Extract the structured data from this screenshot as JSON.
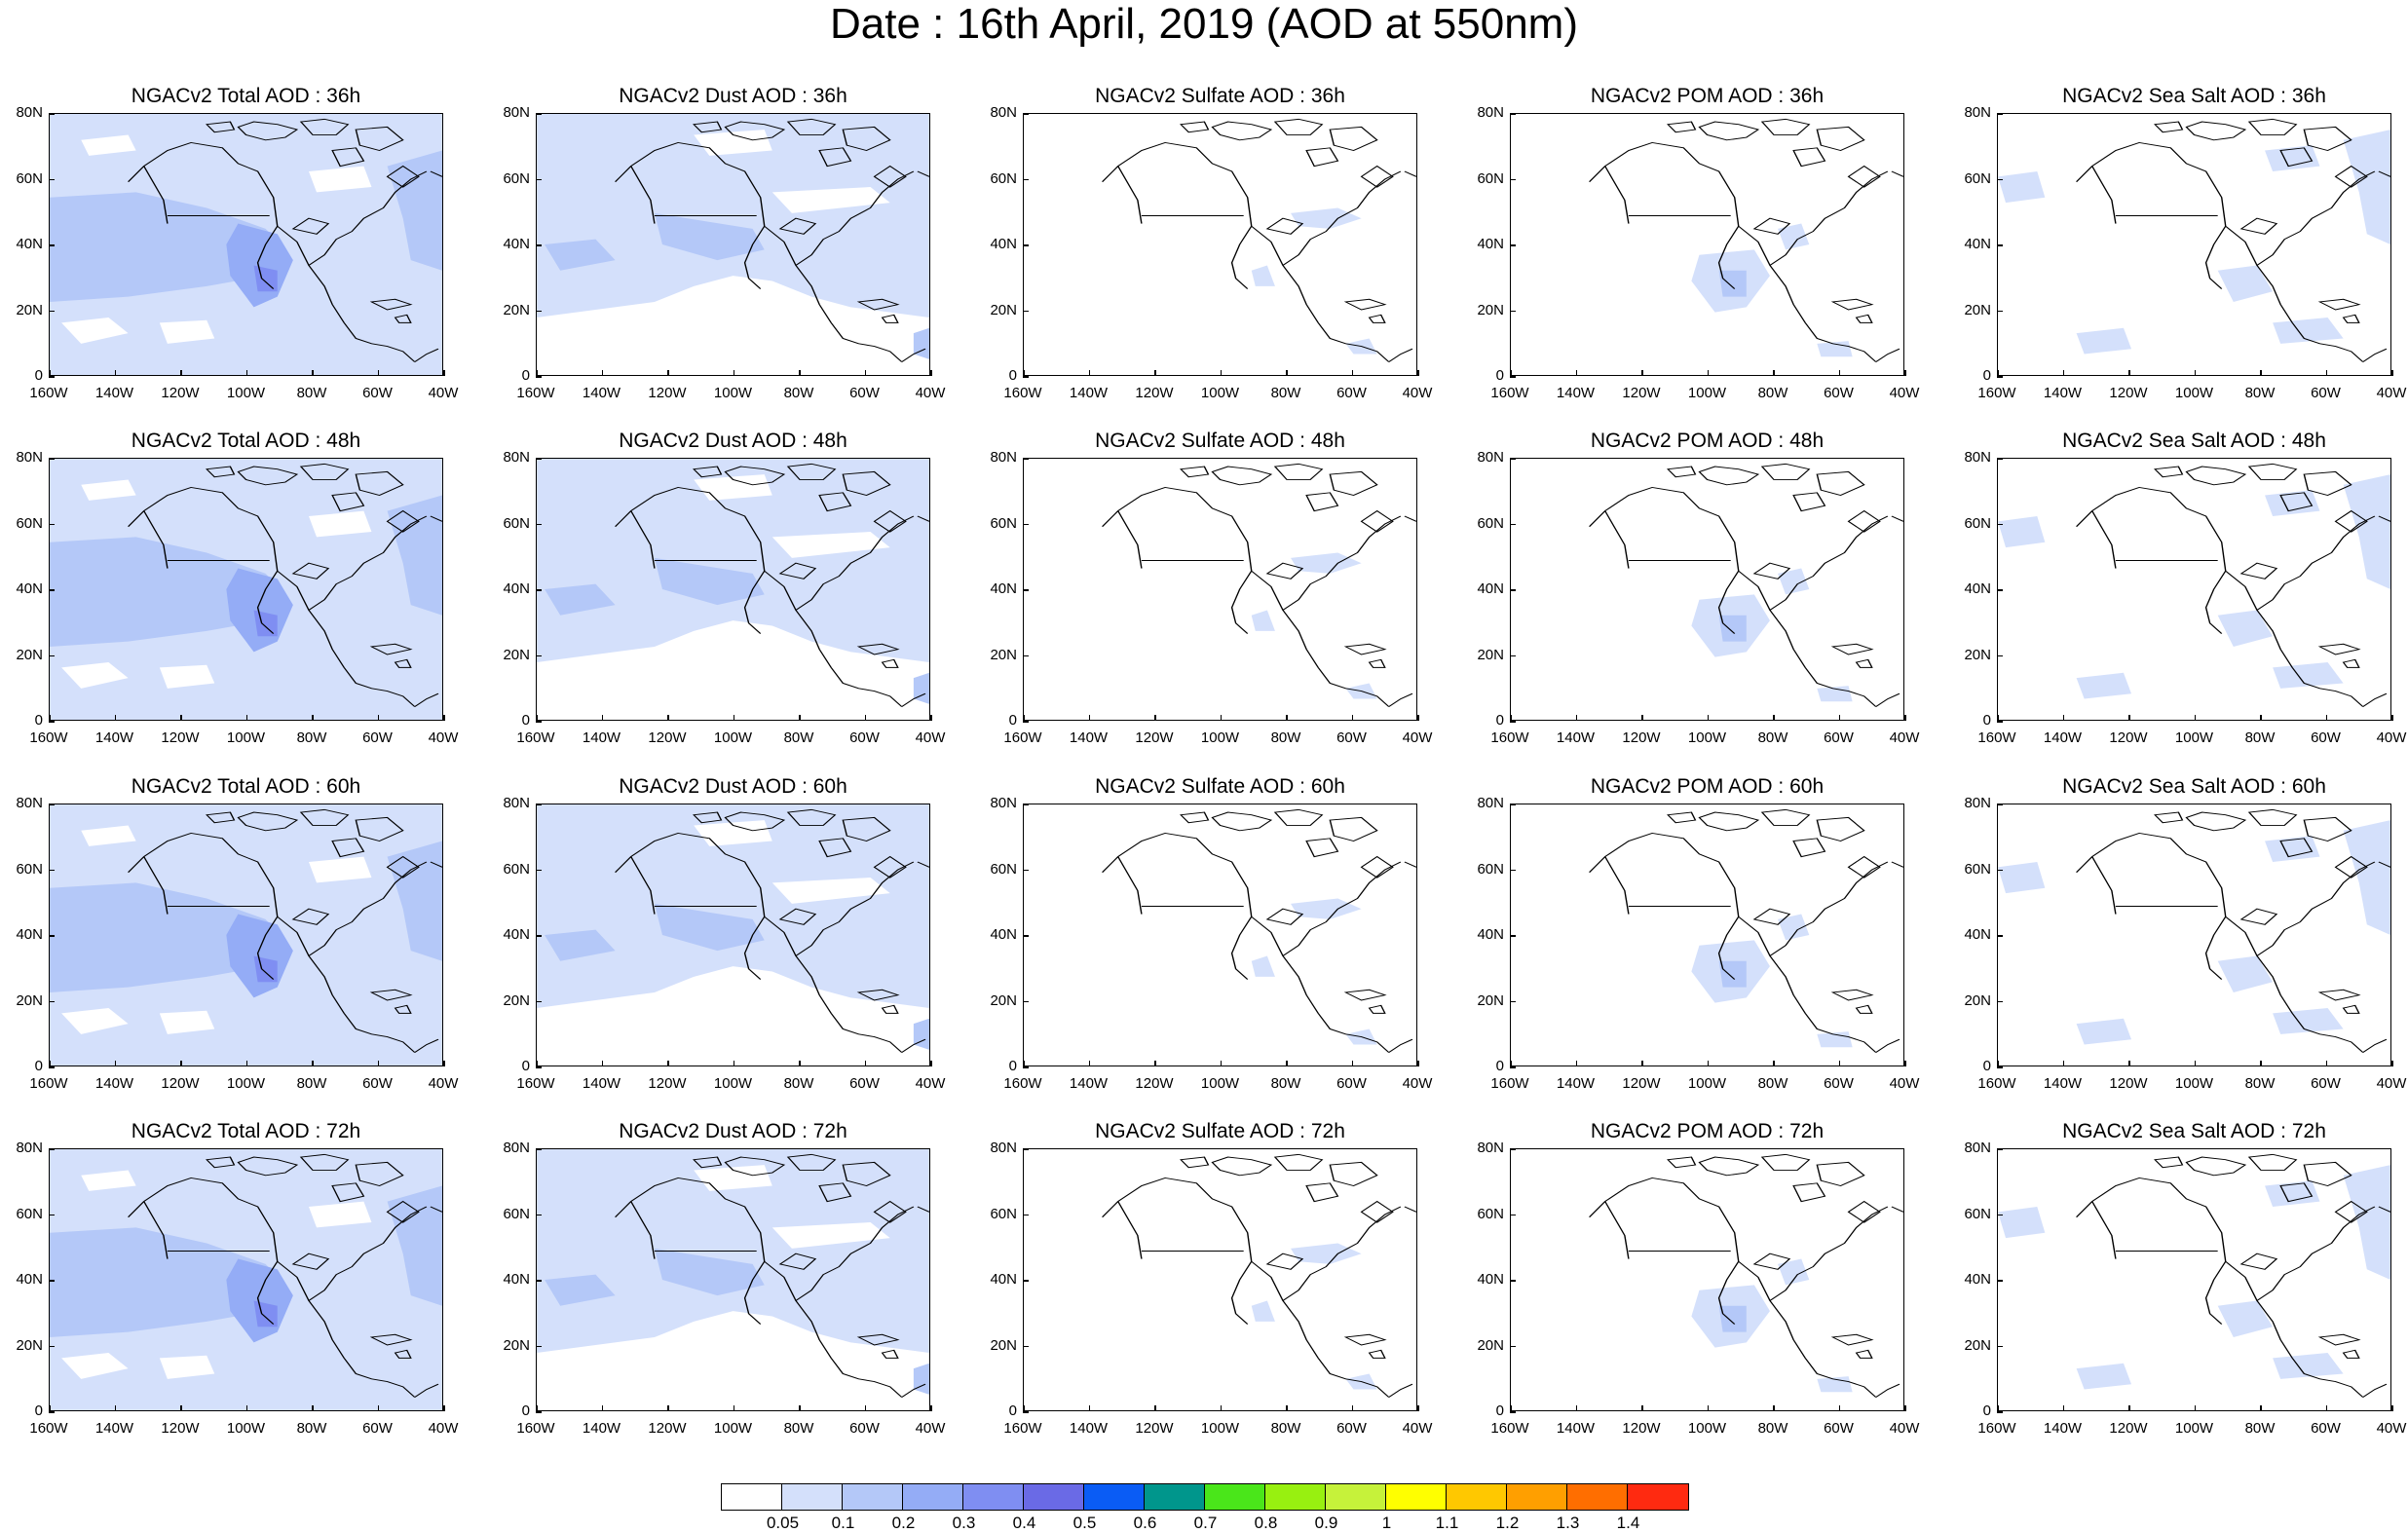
{
  "figure_title": "Date : 16th April, 2019 (AOD at 550nm)",
  "axes": {
    "lat_labels": [
      "80N",
      "60N",
      "40N",
      "20N",
      "0"
    ],
    "lon_labels": [
      "160W",
      "140W",
      "120W",
      "100W",
      "80W",
      "60W",
      "40W"
    ]
  },
  "panels": [
    [
      {
        "title": "NGACv2 Total AOD : 36h",
        "species": "total"
      },
      {
        "title": "NGACv2 Dust AOD : 36h",
        "species": "dust"
      },
      {
        "title": "NGACv2 Sulfate AOD : 36h",
        "species": "sulfate"
      },
      {
        "title": "NGACv2 POM AOD : 36h",
        "species": "pom"
      },
      {
        "title": "NGACv2 Sea Salt AOD : 36h",
        "species": "seasalt"
      }
    ],
    [
      {
        "title": "NGACv2 Total AOD : 48h",
        "species": "total"
      },
      {
        "title": "NGACv2 Dust AOD : 48h",
        "species": "dust"
      },
      {
        "title": "NGACv2 Sulfate AOD : 48h",
        "species": "sulfate"
      },
      {
        "title": "NGACv2 POM AOD : 48h",
        "species": "pom"
      },
      {
        "title": "NGACv2 Sea Salt AOD : 48h",
        "species": "seasalt"
      }
    ],
    [
      {
        "title": "NGACv2 Total AOD : 60h",
        "species": "total"
      },
      {
        "title": "NGACv2 Dust AOD : 60h",
        "species": "dust"
      },
      {
        "title": "NGACv2 Sulfate AOD : 60h",
        "species": "sulfate"
      },
      {
        "title": "NGACv2 POM AOD : 60h",
        "species": "pom"
      },
      {
        "title": "NGACv2 Sea Salt AOD : 60h",
        "species": "seasalt"
      }
    ],
    [
      {
        "title": "NGACv2 Total AOD : 72h",
        "species": "total"
      },
      {
        "title": "NGACv2 Dust AOD : 72h",
        "species": "dust"
      },
      {
        "title": "NGACv2 Sulfate AOD : 72h",
        "species": "sulfate"
      },
      {
        "title": "NGACv2 POM AOD : 72h",
        "species": "pom"
      },
      {
        "title": "NGACv2 Sea Salt  AOD : 72h",
        "species": "seasalt"
      }
    ]
  ],
  "colorbar": {
    "colors": [
      "#ffffff",
      "#d4e0fb",
      "#b4c8f8",
      "#94acf6",
      "#7f8ef2",
      "#6a6ae6",
      "#0a5cf5",
      "#00968c",
      "#4ae61a",
      "#98f010",
      "#c6f23a",
      "#ffff00",
      "#ffc800",
      "#ff9f00",
      "#ff6e00",
      "#ff2a10"
    ],
    "labels": [
      "0.05",
      "0.1",
      "0.2",
      "0.3",
      "0.4",
      "0.5",
      "0.6",
      "0.7",
      "0.8",
      "0.9",
      "1",
      "1.1",
      "1.2",
      "1.3",
      "1.4"
    ]
  }
}
